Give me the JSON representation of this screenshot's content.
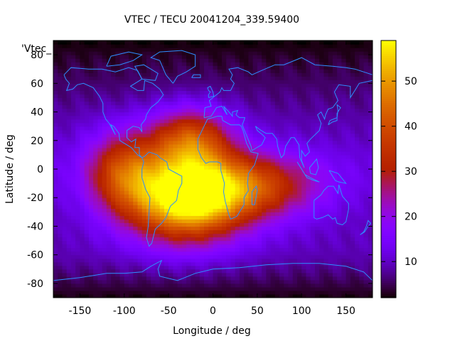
{
  "chart_data": {
    "type": "heatmap",
    "title": "VTEC / TECU 20041204_339.59400",
    "xlabel": "Longitude / deg",
    "ylabel": "Latitude / deg",
    "key_label": "'Vtec_",
    "xlim": [
      -180,
      180
    ],
    "ylim": [
      -90,
      90
    ],
    "x_ticks": [
      -150,
      -100,
      -50,
      0,
      50,
      100,
      150
    ],
    "y_ticks": [
      -80,
      -60,
      -40,
      -20,
      0,
      20,
      40,
      60,
      80
    ],
    "zlim": [
      2,
      59
    ],
    "colorbar_ticks": [
      10,
      20,
      30,
      40,
      50
    ],
    "grid": false,
    "overlay": "coastlines",
    "colormap": "gnuplot-rgbformulae-7-5-15",
    "field_model": {
      "background_min": 2,
      "peaks": [
        {
          "lon": -30,
          "lat": -22,
          "vtec": 58
        },
        {
          "lon": -25,
          "lat": 20,
          "vtec": 40
        },
        {
          "lon": -100,
          "lat": -2,
          "vtec": 36
        },
        {
          "lon": 40,
          "lat": -12,
          "vtec": 37
        }
      ]
    }
  }
}
